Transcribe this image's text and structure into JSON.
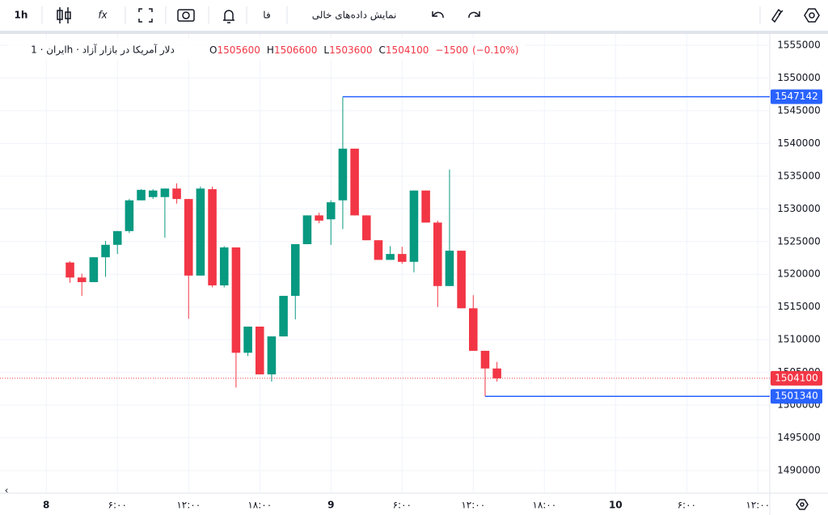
{
  "toolbar": {
    "interval": "1h",
    "language": "فا",
    "empty_data_label": "نمایش داده‌های خالی"
  },
  "chart_data": {
    "type": "candlestick",
    "title": "ایران · 1h · دلار آمریکا در بازار آزاد",
    "ohlc": [
      {
        "key": "O",
        "value": 1505600
      },
      {
        "key": "H",
        "value": 1506600
      },
      {
        "key": "L",
        "value": 1503600
      },
      {
        "key": "C",
        "value": 1504100
      }
    ],
    "change": {
      "value": -1500,
      "label": "−1500"
    },
    "change_pct": {
      "value": -0.1,
      "label": "(−0.10%)"
    },
    "up_color": "#089981",
    "down_color": "#f23645",
    "x": [
      2,
      3,
      4,
      5,
      6,
      7,
      8,
      9,
      10,
      11,
      12,
      13,
      14,
      15,
      16,
      17,
      18,
      19,
      20,
      21,
      22,
      23,
      24,
      25,
      26,
      27,
      28,
      29,
      30,
      31,
      32,
      33,
      34,
      35,
      36,
      37,
      38
    ],
    "open": [
      1521800,
      1519500,
      1518800,
      1522600,
      1524500,
      1526600,
      1531300,
      1531800,
      1531800,
      1533100,
      1531500,
      1519800,
      1533000,
      1518300,
      1524100,
      1508000,
      1512000,
      1504700,
      1510500,
      1516700,
      1524600,
      1529000,
      1528400,
      1531300,
      1539200,
      1529000,
      1525200,
      1522200,
      1523100,
      1521900,
      1532800,
      1527900,
      1518200,
      1523600,
      1514800,
      1508300,
      1505600
    ],
    "high": [
      1522000,
      1520100,
      1522600,
      1525100,
      1526600,
      1531500,
      1533000,
      1533000,
      1533100,
      1533900,
      1531500,
      1533400,
      1533400,
      1524300,
      1524100,
      1512000,
      1512000,
      1510500,
      1516700,
      1524600,
      1529000,
      1529400,
      1531300,
      1547142,
      1539200,
      1529000,
      1525200,
      1524300,
      1524200,
      1532800,
      1532800,
      1528200,
      1536000,
      1523600,
      1516800,
      1508300,
      1506600
    ],
    "low": [
      1518700,
      1516700,
      1518800,
      1519600,
      1523100,
      1526300,
      1531300,
      1531500,
      1525600,
      1530800,
      1513200,
      1519800,
      1518000,
      1518000,
      1502700,
      1507500,
      1504700,
      1503600,
      1510500,
      1513100,
      1524600,
      1527800,
      1524500,
      1526900,
      1529000,
      1525200,
      1522200,
      1522200,
      1521600,
      1520300,
      1527900,
      1515000,
      1518200,
      1514800,
      1508300,
      1501340,
      1503600
    ],
    "close": [
      1519500,
      1518800,
      1522600,
      1524500,
      1526600,
      1531300,
      1532900,
      1532800,
      1533100,
      1531500,
      1519800,
      1533100,
      1518300,
      1524100,
      1508000,
      1512000,
      1504700,
      1510500,
      1516700,
      1524600,
      1529000,
      1528200,
      1531000,
      1539200,
      1529000,
      1525200,
      1522200,
      1523100,
      1521900,
      1532800,
      1527900,
      1518200,
      1523600,
      1514800,
      1508300,
      1505600,
      1504100
    ],
    "xlim": [
      -3.9,
      61
    ],
    "xticks": [
      {
        "value": 0,
        "label": "8"
      },
      {
        "value": 6,
        "label": "۶:۰۰"
      },
      {
        "value": 12,
        "label": "۱۲:۰۰"
      },
      {
        "value": 18,
        "label": "۱۸:۰۰"
      },
      {
        "value": 24,
        "label": "9"
      },
      {
        "value": 30,
        "label": "۶:۰۰"
      },
      {
        "value": 36,
        "label": "۱۲:۰۰"
      },
      {
        "value": 42,
        "label": "۱۸:۰۰"
      },
      {
        "value": 48,
        "label": "10"
      },
      {
        "value": 54,
        "label": "۶:۰۰"
      },
      {
        "value": 60,
        "label": "۱۲:۰۰"
      }
    ],
    "ylim": [
      1486540,
      1556730
    ],
    "yticks": [
      1490000,
      1495000,
      1500000,
      1505000,
      1510000,
      1515000,
      1520000,
      1525000,
      1530000,
      1535000,
      1540000,
      1545000,
      1550000,
      1555000
    ],
    "grid": true,
    "price_lines": [
      {
        "value": 1547142,
        "color": "#2962ff"
      },
      {
        "value": 1504100,
        "color": "#f23645",
        "style": "dotted"
      },
      {
        "value": 1501340,
        "color": "#2962ff"
      }
    ]
  }
}
